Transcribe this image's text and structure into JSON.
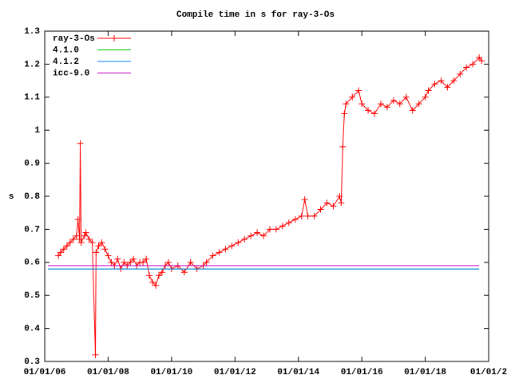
{
  "chart_data": {
    "type": "line",
    "title": "Compile time in s for ray-3-Os",
    "y_label": "s",
    "xlim": [
      2006,
      2020
    ],
    "xticks": [
      {
        "value": 2006,
        "label": "01/01/06"
      },
      {
        "value": 2008,
        "label": "01/01/08"
      },
      {
        "value": 2010,
        "label": "01/01/10"
      },
      {
        "value": 2012,
        "label": "01/01/12"
      },
      {
        "value": 2014,
        "label": "01/01/14"
      },
      {
        "value": 2016,
        "label": "01/01/16"
      },
      {
        "value": 2018,
        "label": "01/01/18"
      },
      {
        "value": 2020,
        "label": "01/01/2"
      }
    ],
    "ylim": [
      0.3,
      1.3
    ],
    "yticks": [
      0.3,
      0.4,
      0.5,
      0.6,
      0.7,
      0.8,
      0.9,
      1,
      1.1,
      1.2,
      1.3
    ],
    "legend": "top-left",
    "series": [
      {
        "name": "ray-3-Os",
        "color": "#ff0000",
        "marker": "plus",
        "x": [
          2006.43,
          2006.5,
          2006.6,
          2006.7,
          2006.8,
          2006.9,
          2007.0,
          2007.05,
          2007.1,
          2007.12,
          2007.15,
          2007.25,
          2007.3,
          2007.4,
          2007.5,
          2007.6,
          2007.62,
          2007.7,
          2007.8,
          2007.9,
          2008.0,
          2008.1,
          2008.2,
          2008.3,
          2008.4,
          2008.5,
          2008.6,
          2008.7,
          2008.8,
          2008.9,
          2009.0,
          2009.1,
          2009.2,
          2009.3,
          2009.4,
          2009.5,
          2009.6,
          2009.7,
          2009.8,
          2009.9,
          2010.0,
          2010.2,
          2010.4,
          2010.6,
          2010.8,
          2011.0,
          2011.1,
          2011.3,
          2011.5,
          2011.7,
          2011.9,
          2012.1,
          2012.3,
          2012.5,
          2012.7,
          2012.9,
          2013.1,
          2013.3,
          2013.5,
          2013.7,
          2013.9,
          2014.1,
          2014.2,
          2014.3,
          2014.5,
          2014.7,
          2014.9,
          2015.1,
          2015.3,
          2015.35,
          2015.4,
          2015.45,
          2015.5,
          2015.7,
          2015.9,
          2016.0,
          2016.2,
          2016.4,
          2016.6,
          2016.8,
          2017.0,
          2017.2,
          2017.4,
          2017.6,
          2017.8,
          2018.0,
          2018.1,
          2018.3,
          2018.5,
          2018.7,
          2018.9,
          2019.1,
          2019.3,
          2019.5,
          2019.7,
          2019.78
        ],
        "values": [
          0.62,
          0.63,
          0.64,
          0.65,
          0.66,
          0.67,
          0.68,
          0.73,
          0.67,
          0.96,
          0.66,
          0.68,
          0.69,
          0.67,
          0.66,
          0.32,
          0.63,
          0.65,
          0.66,
          0.64,
          0.62,
          0.6,
          0.59,
          0.61,
          0.58,
          0.6,
          0.59,
          0.6,
          0.61,
          0.59,
          0.6,
          0.6,
          0.61,
          0.56,
          0.54,
          0.53,
          0.56,
          0.57,
          0.59,
          0.6,
          0.58,
          0.59,
          0.57,
          0.6,
          0.58,
          0.59,
          0.6,
          0.62,
          0.63,
          0.64,
          0.65,
          0.66,
          0.67,
          0.68,
          0.69,
          0.68,
          0.7,
          0.7,
          0.71,
          0.72,
          0.73,
          0.74,
          0.79,
          0.74,
          0.74,
          0.76,
          0.78,
          0.77,
          0.8,
          0.78,
          0.95,
          1.05,
          1.08,
          1.1,
          1.12,
          1.08,
          1.06,
          1.05,
          1.08,
          1.07,
          1.09,
          1.08,
          1.1,
          1.06,
          1.08,
          1.1,
          1.12,
          1.14,
          1.15,
          1.13,
          1.15,
          1.17,
          1.19,
          1.2,
          1.22,
          1.21
        ]
      },
      {
        "name": "4.1.0",
        "color": "#00c000",
        "x": [
          2006.1,
          2019.7
        ],
        "values": [
          0.58,
          0.58
        ]
      },
      {
        "name": "4.1.2",
        "color": "#0080ff",
        "x": [
          2006.1,
          2019.7
        ],
        "values": [
          0.58,
          0.58
        ]
      },
      {
        "name": "icc-9.0",
        "color": "#c000c0",
        "x": [
          2006.1,
          2019.7
        ],
        "values": [
          0.59,
          0.59
        ]
      }
    ]
  }
}
